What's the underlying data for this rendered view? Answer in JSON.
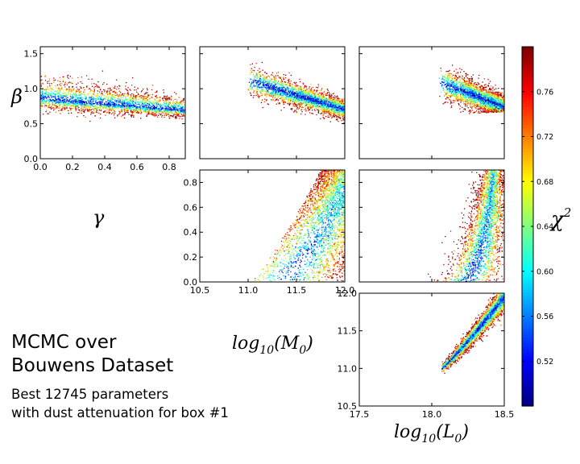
{
  "title_lines": [
    "MCMC over",
    "Bouwens Dataset"
  ],
  "subtitle_lines": [
    "Best 12745 parameters",
    "with dust attenuation for box #1"
  ],
  "labels": {
    "beta": "β",
    "gamma": "γ",
    "log_m0": "log",
    "log_m0_sub": "10",
    "log_m0_arg": "(M",
    "log_m0_argsub": "0",
    "log_m0_close": ")",
    "log_l0": "log",
    "log_l0_sub": "10",
    "log_l0_arg": "(L",
    "log_l0_argsub": "0",
    "log_l0_close": ")",
    "chi": "χ",
    "chi_sup": "2"
  },
  "chart_data": [
    {
      "type": "scatter",
      "id": "gamma-beta",
      "xlabel": "γ",
      "ylabel": "β",
      "xlim": [
        0.0,
        0.9
      ],
      "ylim": [
        0.0,
        1.6
      ],
      "xticks": [
        "0.0",
        "0.2",
        "0.4",
        "0.6",
        "0.8"
      ],
      "yticks": [
        "0.0",
        "0.5",
        "1.0",
        "1.5"
      ],
      "color_by": "χ²",
      "approx_point_count": 12745,
      "region": {
        "x_range": [
          0.0,
          0.9
        ],
        "y_center_at_x_start": 0.86,
        "y_center_at_x_end": 0.71,
        "spread": 0.18
      }
    },
    {
      "type": "scatter",
      "id": "logM0-beta",
      "xlabel": "log10(M0)",
      "ylabel": "β",
      "xlim": [
        10.5,
        12.0
      ],
      "ylim": [
        0.0,
        1.6
      ],
      "color_by": "χ²",
      "approx_point_count": 12745,
      "region": {
        "x_range": [
          11.0,
          12.0
        ],
        "y_center_at_x_start": 1.15,
        "y_center_at_x_end": 0.7,
        "spread": 0.12
      }
    },
    {
      "type": "scatter",
      "id": "logL0-beta",
      "xlabel": "log10(L0)",
      "ylabel": "β",
      "xlim": [
        17.5,
        18.5
      ],
      "ylim": [
        0.0,
        1.6
      ],
      "color_by": "χ²",
      "approx_point_count": 12745,
      "region": {
        "x_range": [
          18.05,
          18.5
        ],
        "y_center_at_x_start": 1.1,
        "y_center_at_x_end": 0.76,
        "spread": 0.14
      }
    },
    {
      "type": "scatter",
      "id": "logM0-gamma",
      "xlabel": "log10(M0)",
      "ylabel": "γ",
      "xlim": [
        10.5,
        12.0
      ],
      "ylim": [
        0.0,
        0.9
      ],
      "xticks": [
        "10.5",
        "11.0",
        "11.5",
        "12.0"
      ],
      "yticks": [
        "0.0",
        "0.2",
        "0.4",
        "0.6",
        "0.8"
      ],
      "color_by": "χ²",
      "approx_point_count": 12745,
      "region": {
        "x_range": [
          11.0,
          12.0
        ],
        "y_at_x_start": 0.0,
        "y_at_x_end": 0.9
      }
    },
    {
      "type": "scatter",
      "id": "logL0-gamma",
      "xlabel": "log10(L0)",
      "ylabel": "γ",
      "xlim": [
        17.5,
        18.5
      ],
      "ylim": [
        0.0,
        0.9
      ],
      "color_by": "χ²",
      "approx_point_count": 12745,
      "region": {
        "x_range": [
          18.05,
          18.5
        ],
        "y_at_x_start": 0.0,
        "y_at_x_end": 0.9
      }
    },
    {
      "type": "scatter",
      "id": "logL0-logM0",
      "xlabel": "log10(L0)",
      "ylabel": "log10(M0)",
      "xlim": [
        17.5,
        18.5
      ],
      "ylim": [
        10.5,
        12.0
      ],
      "xticks": [
        "17.5",
        "18.0",
        "18.5"
      ],
      "yticks": [
        "10.5",
        "11.0",
        "11.5",
        "12.0"
      ],
      "color_by": "χ²",
      "approx_point_count": 12745,
      "region": {
        "x_range": [
          18.05,
          18.5
        ],
        "y_at_x_start": 11.0,
        "y_at_x_end": 12.0,
        "spread": 0.12
      }
    }
  ],
  "colorbar": {
    "label": "χ²",
    "range": [
      0.48,
      0.8
    ],
    "ticks": [
      "0.52",
      "0.56",
      "0.60",
      "0.64",
      "0.68",
      "0.72",
      "0.76"
    ],
    "tick_values": [
      0.52,
      0.56,
      0.6,
      0.64,
      0.68,
      0.72,
      0.76
    ],
    "colormap": "jet"
  }
}
